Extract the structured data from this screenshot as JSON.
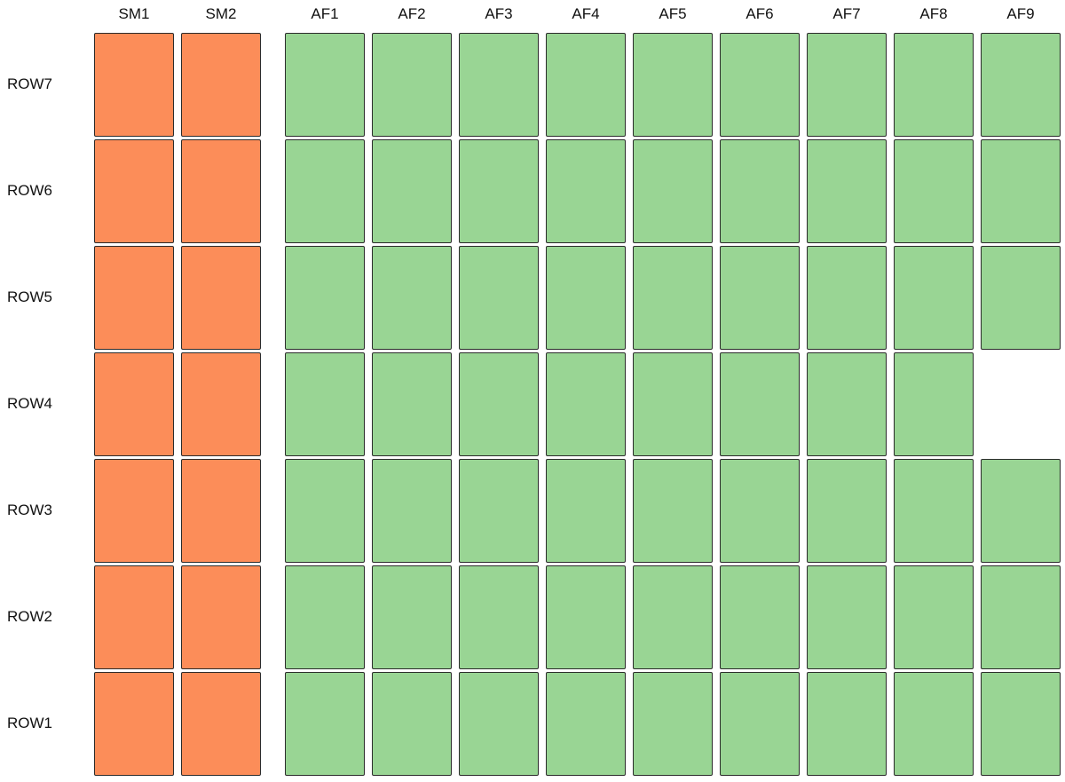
{
  "colors": {
    "sm": "#fc8d59",
    "af": "#99d594",
    "border": "#2b2b2b"
  },
  "groups": [
    {
      "id": "sm",
      "columns": [
        "SM1",
        "SM2"
      ]
    },
    {
      "id": "af",
      "columns": [
        "AF1",
        "AF2",
        "AF3",
        "AF4",
        "AF5",
        "AF6",
        "AF7",
        "AF8",
        "AF9"
      ]
    }
  ],
  "rows": [
    "ROW7",
    "ROW6",
    "ROW5",
    "ROW4",
    "ROW3",
    "ROW2",
    "ROW1"
  ],
  "missing_cells": [
    {
      "row": "ROW4",
      "column": "AF9"
    }
  ]
}
